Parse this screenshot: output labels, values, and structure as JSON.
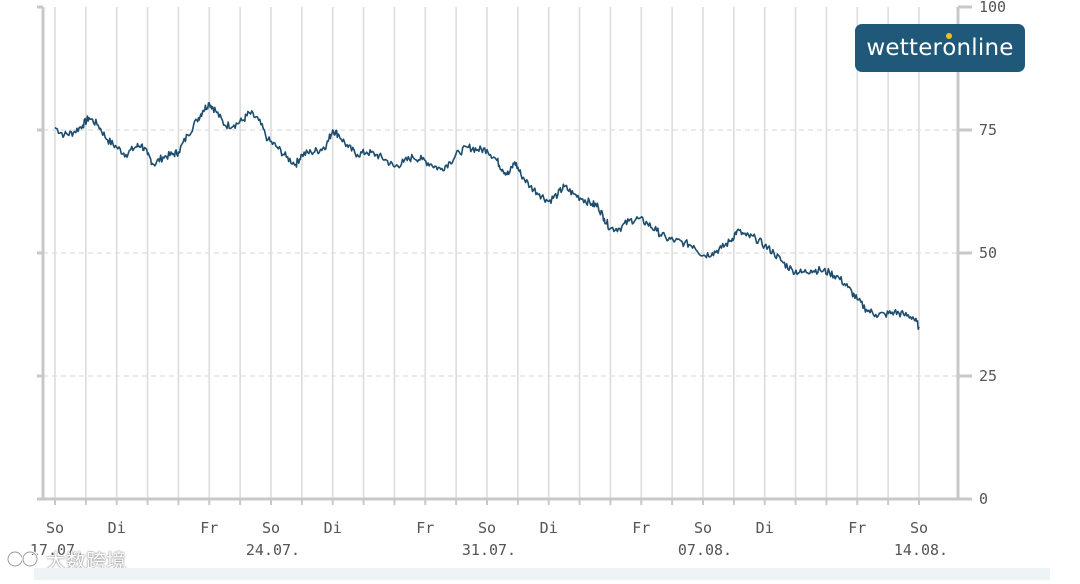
{
  "chart_data": {
    "type": "line",
    "ylim": [
      0,
      100
    ],
    "yticks": [
      "0",
      "25",
      "50",
      "75",
      "100"
    ],
    "grid": true,
    "line_color": "#1d4d6e",
    "x_range": [
      "2022-07-17",
      "2022-08-14"
    ],
    "weekday_labels": [
      {
        "day": 0,
        "text": "So"
      },
      {
        "day": 2,
        "text": "Di"
      },
      {
        "day": 5,
        "text": "Fr"
      },
      {
        "day": 7,
        "text": "So"
      },
      {
        "day": 9,
        "text": "Di"
      },
      {
        "day": 12,
        "text": "Fr"
      },
      {
        "day": 14,
        "text": "So"
      },
      {
        "day": 16,
        "text": "Di"
      },
      {
        "day": 19,
        "text": "Fr"
      },
      {
        "day": 21,
        "text": "So"
      },
      {
        "day": 23,
        "text": "Di"
      },
      {
        "day": 26,
        "text": "Fr"
      },
      {
        "day": 28,
        "text": "So"
      }
    ],
    "date_labels": [
      {
        "day": 0,
        "text": "17.07."
      },
      {
        "day": 7,
        "text": "24.07."
      },
      {
        "day": 14,
        "text": "31.07."
      },
      {
        "day": 21,
        "text": "07.08."
      },
      {
        "day": 28,
        "text": "14.08."
      }
    ],
    "series": [
      {
        "points": [
          [
            0.0,
            75.5
          ],
          [
            0.3,
            74.0
          ],
          [
            0.6,
            74.5
          ],
          [
            0.9,
            76.0
          ],
          [
            1.1,
            77.5
          ],
          [
            1.4,
            76.0
          ],
          [
            1.7,
            73.0
          ],
          [
            2.0,
            71.5
          ],
          [
            2.3,
            70.0
          ],
          [
            2.6,
            71.5
          ],
          [
            2.8,
            72.0
          ],
          [
            3.0,
            70.0
          ],
          [
            3.2,
            68.0
          ],
          [
            3.5,
            69.5
          ],
          [
            3.8,
            70.0
          ],
          [
            4.0,
            70.5
          ],
          [
            4.3,
            74.0
          ],
          [
            4.6,
            77.0
          ],
          [
            4.8,
            79.0
          ],
          [
            5.0,
            80.5
          ],
          [
            5.2,
            79.0
          ],
          [
            5.5,
            76.0
          ],
          [
            5.8,
            76.0
          ],
          [
            6.1,
            77.0
          ],
          [
            6.3,
            78.5
          ],
          [
            6.6,
            77.0
          ],
          [
            6.9,
            73.0
          ],
          [
            7.2,
            71.5
          ],
          [
            7.5,
            69.5
          ],
          [
            7.8,
            68.0
          ],
          [
            8.0,
            70.0
          ],
          [
            8.3,
            70.5
          ],
          [
            8.6,
            71.0
          ],
          [
            8.8,
            72.0
          ],
          [
            9.0,
            75.0
          ],
          [
            9.2,
            74.0
          ],
          [
            9.5,
            71.5
          ],
          [
            9.8,
            70.0
          ],
          [
            10.1,
            70.5
          ],
          [
            10.4,
            70.0
          ],
          [
            10.7,
            69.0
          ],
          [
            11.0,
            67.5
          ],
          [
            11.3,
            68.5
          ],
          [
            11.6,
            69.5
          ],
          [
            11.9,
            69.0
          ],
          [
            12.2,
            68.0
          ],
          [
            12.5,
            67.0
          ],
          [
            12.8,
            68.5
          ],
          [
            13.1,
            70.5
          ],
          [
            13.4,
            71.5
          ],
          [
            13.7,
            71.0
          ],
          [
            14.0,
            71.0
          ],
          [
            14.3,
            69.0
          ],
          [
            14.5,
            67.0
          ],
          [
            14.7,
            66.0
          ],
          [
            14.9,
            68.5
          ],
          [
            15.1,
            66.0
          ],
          [
            15.4,
            63.5
          ],
          [
            15.7,
            62.0
          ],
          [
            16.0,
            60.5
          ],
          [
            16.3,
            62.0
          ],
          [
            16.5,
            63.5
          ],
          [
            16.8,
            62.0
          ],
          [
            17.1,
            61.0
          ],
          [
            17.4,
            60.0
          ],
          [
            17.6,
            59.5
          ],
          [
            17.8,
            57.0
          ],
          [
            18.0,
            55.0
          ],
          [
            18.3,
            55.0
          ],
          [
            18.6,
            56.5
          ],
          [
            18.9,
            57.0
          ],
          [
            19.2,
            56.0
          ],
          [
            19.5,
            54.5
          ],
          [
            19.8,
            53.0
          ],
          [
            20.1,
            52.5
          ],
          [
            20.4,
            52.0
          ],
          [
            20.7,
            51.5
          ],
          [
            21.0,
            49.5
          ],
          [
            21.3,
            50.0
          ],
          [
            21.6,
            51.0
          ],
          [
            21.9,
            52.5
          ],
          [
            22.1,
            54.5
          ],
          [
            22.4,
            53.5
          ],
          [
            22.7,
            53.0
          ],
          [
            23.0,
            51.5
          ],
          [
            23.3,
            50.0
          ],
          [
            23.6,
            48.0
          ],
          [
            23.9,
            46.5
          ],
          [
            24.2,
            46.0
          ],
          [
            24.5,
            46.5
          ],
          [
            24.8,
            46.5
          ],
          [
            25.1,
            46.0
          ],
          [
            25.4,
            45.0
          ],
          [
            25.7,
            43.0
          ],
          [
            26.0,
            40.5
          ],
          [
            26.3,
            38.5
          ],
          [
            26.6,
            37.5
          ],
          [
            26.9,
            37.5
          ],
          [
            27.2,
            38.0
          ],
          [
            27.5,
            37.5
          ],
          [
            27.8,
            37.0
          ],
          [
            28.0,
            35.0
          ]
        ]
      }
    ]
  },
  "logo": {
    "pre": "wetter",
    "o": "o",
    "post": "nline"
  },
  "watermark": {
    "text": "大数跨境"
  }
}
